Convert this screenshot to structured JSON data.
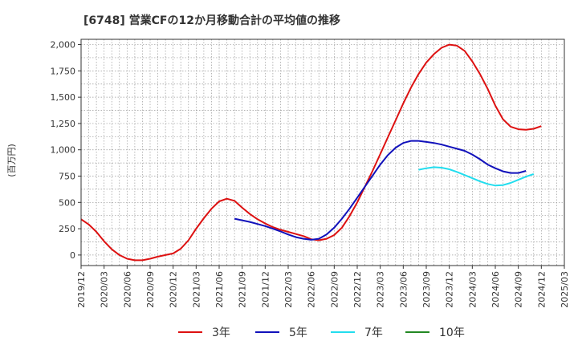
{
  "chart_data": {
    "type": "line",
    "title": "[6748]  営業CFの12か月移動合計の平均値の推移",
    "ylabel": "(百万円)",
    "xlabel": "",
    "ylim": [
      -100,
      2050
    ],
    "yticks": [
      0,
      250,
      500,
      750,
      1000,
      1250,
      1500,
      1750,
      2000
    ],
    "ytick_labels": [
      "0",
      "250",
      "500",
      "750",
      "1,000",
      "1,250",
      "1,500",
      "1,750",
      "2,000"
    ],
    "xtick_labels": [
      "2019/12",
      "2020/03",
      "2020/06",
      "2020/09",
      "2020/12",
      "2021/03",
      "2021/06",
      "2021/09",
      "2021/12",
      "2022/03",
      "2022/06",
      "2022/09",
      "2022/12",
      "2023/03",
      "2023/06",
      "2023/09",
      "2023/12",
      "2024/03",
      "2024/06",
      "2024/09",
      "2024/12",
      "2025/03"
    ],
    "grid": true,
    "legend_position": "bottom",
    "series": [
      {
        "name": "3年",
        "color": "#dd1111",
        "start": "2019/12",
        "values": [
          340,
          290,
          220,
          130,
          55,
          0,
          -35,
          -50,
          -50,
          -35,
          -15,
          0,
          15,
          60,
          140,
          250,
          350,
          440,
          510,
          535,
          515,
          450,
          390,
          340,
          300,
          265,
          240,
          220,
          200,
          180,
          150,
          140,
          155,
          190,
          260,
          370,
          500,
          650,
          800,
          960,
          1120,
          1280,
          1440,
          1590,
          1720,
          1830,
          1910,
          1970,
          2000,
          1990,
          1940,
          1840,
          1720,
          1580,
          1420,
          1290,
          1220,
          1195,
          1190,
          1200,
          1225
        ]
      },
      {
        "name": "5年",
        "color": "#1111bb",
        "start": "2021/08",
        "values": [
          345,
          330,
          315,
          295,
          275,
          250,
          225,
          195,
          170,
          155,
          145,
          155,
          195,
          260,
          345,
          440,
          545,
          650,
          755,
          860,
          950,
          1020,
          1065,
          1085,
          1085,
          1075,
          1065,
          1050,
          1030,
          1010,
          990,
          955,
          910,
          860,
          825,
          795,
          780,
          780,
          800
        ]
      },
      {
        "name": "7年",
        "color": "#22ddee",
        "start": "2023/08",
        "values": [
          810,
          825,
          835,
          830,
          815,
          790,
          760,
          730,
          700,
          675,
          660,
          665,
          685,
          715,
          745,
          770
        ]
      },
      {
        "name": "10年",
        "color": "#228822",
        "start": "2023/08",
        "values": []
      }
    ]
  }
}
